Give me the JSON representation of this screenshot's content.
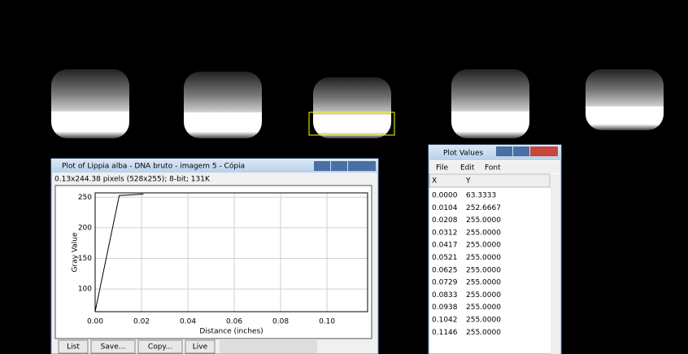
{
  "plot_window": {
    "title": "Plot of Lippia alba - DNA bruto - imagem 5 - Cópia",
    "info": "0.13x244.38 pixels (528x255); 8-bit; 131K",
    "buttons": [
      "List",
      "Save...",
      "Copy...",
      "Live"
    ]
  },
  "chart_data": {
    "type": "line",
    "x_label": "Distance (inches)",
    "y_label": "Gray Value",
    "x": [
      0,
      0.0104,
      0.0208
    ],
    "series": [
      {
        "name": "Gray Value",
        "color": "#000000",
        "values": [
          63.3333,
          252.6667,
          255
        ]
      }
    ],
    "xlim": [
      0,
      0.1175
    ],
    "ylim": [
      63,
      257
    ],
    "xticks": [
      {
        "value": 0,
        "label": "0.00"
      },
      {
        "value": 0.02,
        "label": "0.02"
      },
      {
        "value": 0.04,
        "label": "0.04"
      },
      {
        "value": 0.06,
        "label": "0.06"
      },
      {
        "value": 0.08,
        "label": "0.08"
      },
      {
        "value": 0.1,
        "label": "0.10"
      }
    ],
    "yticks": [
      100,
      150,
      200,
      250
    ],
    "grid": true
  },
  "values_window": {
    "title": "Plot Values",
    "menu": [
      "File",
      "Edit",
      "Font"
    ],
    "columns": [
      "X",
      "Y"
    ],
    "rows": [
      [
        "0.0000",
        "63.3333"
      ],
      [
        "0.0104",
        "252.6667"
      ],
      [
        "0.0208",
        "255.0000"
      ],
      [
        "0.0312",
        "255.0000"
      ],
      [
        "0.0417",
        "255.0000"
      ],
      [
        "0.0521",
        "255.0000"
      ],
      [
        "0.0625",
        "255.0000"
      ],
      [
        "0.0729",
        "255.0000"
      ],
      [
        "0.0833",
        "255.0000"
      ],
      [
        "0.0938",
        "255.0000"
      ],
      [
        "0.1042",
        "255.0000"
      ],
      [
        "0.1146",
        "255.0000"
      ]
    ]
  }
}
